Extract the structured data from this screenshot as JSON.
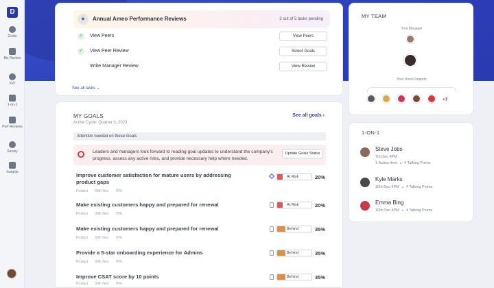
{
  "sidebar": {
    "logo": "D",
    "items": [
      {
        "label": "Goals"
      },
      {
        "label": "Biz Review"
      },
      {
        "label": "KPI"
      },
      {
        "label": "1-on-1"
      },
      {
        "label": "Perf Reviews"
      },
      {
        "label": "Survey"
      },
      {
        "label": "Insights"
      }
    ]
  },
  "tasks": {
    "title": "Annual Ameo Performance Reviews",
    "count": "3 out of 5 tasks pending",
    "rows": [
      {
        "label": "View Peers",
        "button": "View Peers",
        "done": true
      },
      {
        "label": "View Peer Review",
        "button": "Select Goals",
        "done": true
      },
      {
        "label": "Write Manager Review",
        "button": "View Review",
        "done": false
      }
    ],
    "see_all": "See all tasks"
  },
  "goals": {
    "title": "MY GOALS",
    "cycle": "Active Cycle: Quarter 3, 2023",
    "see_all": "See all goals",
    "attention": "Attention needed on these Goals",
    "alert_text": "Leaders and managers look forward to reading goal updates to understand the company's progress, assess any active risks, and provide necessary help where needed.",
    "alert_button": "Update Goals Status",
    "items": [
      {
        "name": "Improve customer satisfaction for mature users by addressing product gaps",
        "type": "Product",
        "date": "30th Nov",
        "views": "70%",
        "status": "At Risk",
        "color": "#d95b5b",
        "pct": "20%"
      },
      {
        "name": "Make existing customers happy and prepared for renewal",
        "type": "Product",
        "date": "30th Nov",
        "views": "70%",
        "status": "At Risk",
        "color": "#d95b5b",
        "pct": "20%"
      },
      {
        "name": "Make existing customers happy and prepared for renewal",
        "type": "Product",
        "date": "30th Nov",
        "views": "70%",
        "status": "Behind",
        "color": "#d9924a",
        "pct": "35%"
      },
      {
        "name": "Provide a 5-star onboarding experience for Admins",
        "type": "Product",
        "date": "30th Nov",
        "views": "70%",
        "status": "Behind",
        "color": "#d9924a",
        "pct": "35%"
      },
      {
        "name": "Improve CSAT score by 10 points",
        "type": "Product",
        "date": "30th Nov",
        "views": "70%",
        "status": "Behind",
        "color": "#d9924a",
        "pct": "35%"
      }
    ]
  },
  "team": {
    "title": "MY TEAM",
    "manager_label": "Your Manager",
    "reports_label": "Your Direct Reports",
    "more": "+7"
  },
  "one_on_one": {
    "title": "1-ON-1",
    "people": [
      {
        "name": "Steve Jobs",
        "date": "7th Dec 4PM",
        "a": "1-Action item",
        "b": "4 Talking Points",
        "avatar": "#8a6a5a"
      },
      {
        "name": "Kyle Marks",
        "date": "10th Dec 4PM",
        "a": "4 Talking Points",
        "b": "",
        "avatar": "#4a4a4a"
      },
      {
        "name": "Emma Bing",
        "date": "10th Dec 4PM",
        "a": "4 Talking Points",
        "b": "",
        "avatar": "#c83a4a"
      }
    ]
  }
}
